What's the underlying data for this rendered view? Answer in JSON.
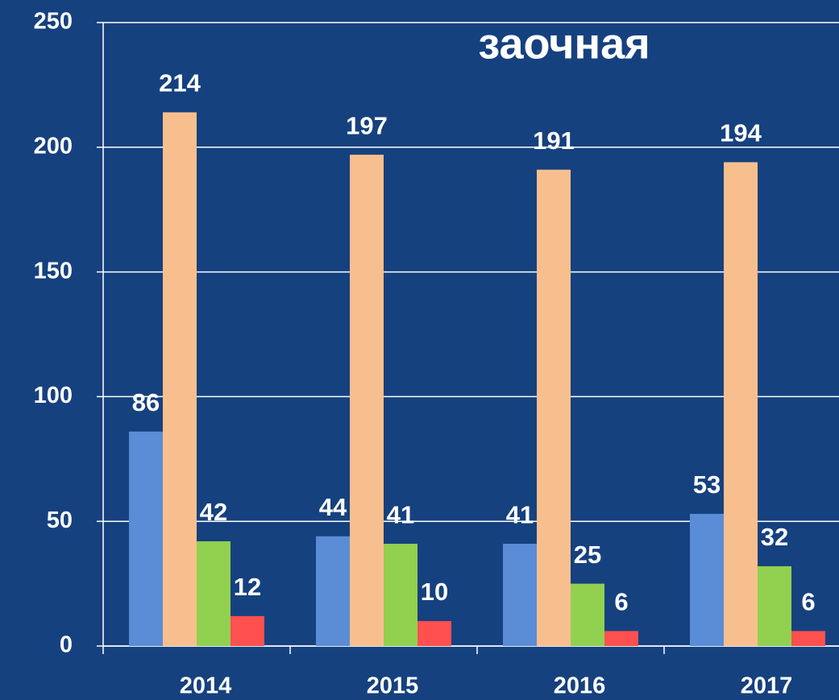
{
  "chart_data": {
    "type": "bar",
    "title": "заочная",
    "categories": [
      "2014",
      "2015",
      "2016",
      "2017"
    ],
    "series": [
      {
        "color": "#5a8dd6",
        "values": [
          86,
          44,
          41,
          53
        ]
      },
      {
        "color": "#f8bf8e",
        "values": [
          214,
          197,
          191,
          194
        ]
      },
      {
        "color": "#92d050",
        "values": [
          42,
          41,
          25,
          32
        ]
      },
      {
        "color": "#ff5050",
        "values": [
          12,
          10,
          6,
          6
        ]
      }
    ],
    "ylim": [
      0,
      250
    ],
    "yticks": [
      0,
      50,
      100,
      150,
      200,
      250
    ],
    "grid": true
  }
}
